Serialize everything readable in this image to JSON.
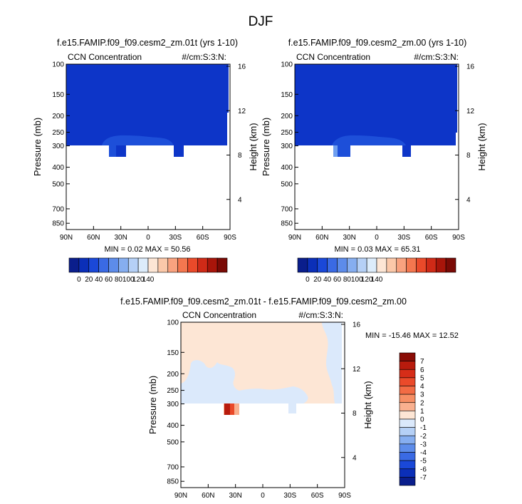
{
  "page": {
    "title": "DJF"
  },
  "colors": {
    "blue_fill": "#0d35c8",
    "blue_mid": "#1d4fd9",
    "blue_light": "#6f9ff0",
    "diff_blue": "#dbe9fb",
    "diff_orange": "#fde6d5",
    "diff_red_dark": "#b81b0d",
    "diff_red": "#ea4a2a"
  },
  "chart_data": [
    {
      "id": "left",
      "type": "heatmap",
      "title": "f.e15.FAMIP.f09_f09.cesm2_zm.01t (yrs 1-10)",
      "left_label": "CCN Concentration",
      "right_label": "#/cm:S:3:N:",
      "ylabel": "Pressure (mb)",
      "y2label": "Height (km)",
      "x_ticks": [
        "90N",
        "60N",
        "30N",
        "0",
        "30S",
        "60S",
        "90S"
      ],
      "y_ticks": [
        "100",
        "150",
        "200",
        "250",
        "300",
        "400",
        "500",
        "700",
        "850"
      ],
      "y2_ticks": [
        "16",
        "12",
        "8",
        "4"
      ],
      "min_max": "MIN =  0.02  MAX =  50.56",
      "min": 0.02,
      "max": 50.56
    },
    {
      "id": "right",
      "type": "heatmap",
      "title": "f.e15.FAMIP.f09_f09.cesm2_zm.00 (yrs 1-10)",
      "left_label": "CCN Concentration",
      "right_label": "#/cm:S:3:N:",
      "ylabel": "Pressure (mb)",
      "y2label": "Height (km)",
      "x_ticks": [
        "90N",
        "60N",
        "30N",
        "0",
        "30S",
        "60S",
        "90S"
      ],
      "y_ticks": [
        "100",
        "150",
        "200",
        "250",
        "300",
        "400",
        "500",
        "700",
        "850"
      ],
      "y2_ticks": [
        "16",
        "12",
        "8",
        "4"
      ],
      "min_max": "MIN =  0.03  MAX =  65.31",
      "min": 0.03,
      "max": 65.31
    },
    {
      "id": "diff",
      "type": "heatmap",
      "title": "f.e15.FAMIP.f09_f09.cesm2_zm.01t - f.e15.FAMIP.f09_f09.cesm2_zm.00",
      "left_label": "CCN Concentration",
      "right_label": "#/cm:S:3:N:",
      "ylabel": "Pressure (mb)",
      "y2label": "Height (km)",
      "x_ticks": [
        "90N",
        "60N",
        "30N",
        "0",
        "30S",
        "60S",
        "90S"
      ],
      "y_ticks": [
        "100",
        "150",
        "200",
        "250",
        "300",
        "400",
        "500",
        "700",
        "850"
      ],
      "y2_ticks": [
        "16",
        "12",
        "8",
        "4"
      ],
      "min_max": "MIN = -15.46  MAX =  12.52",
      "min": -15.46,
      "max": 12.52
    }
  ],
  "colorbar_abs": {
    "labels": [
      "0",
      "20",
      "40",
      "60",
      "80",
      "100",
      "120",
      "140"
    ],
    "colors": [
      "#0a1e8c",
      "#0b2fb8",
      "#1a48d8",
      "#3a6ae4",
      "#5d8cea",
      "#86aef0",
      "#b5d0f6",
      "#dcecfb",
      "#fde6d5",
      "#fbc8a9",
      "#f9a27f",
      "#f4774f",
      "#ea4a2a",
      "#cf2a17",
      "#a8150a",
      "#7a0a05"
    ]
  },
  "colorbar_diff": {
    "labels": [
      "7",
      "6",
      "5",
      "4",
      "3",
      "2",
      "1",
      "0",
      "-1",
      "-2",
      "-3",
      "-4",
      "-5",
      "-6",
      "-7"
    ],
    "colors": [
      "#8a0c06",
      "#b81b0d",
      "#d62d18",
      "#ea4a2a",
      "#f26b44",
      "#f68e64",
      "#f9b08f",
      "#fde6d5",
      "#dbe9fb",
      "#b5d0f6",
      "#86aef0",
      "#5d8cea",
      "#3a6ae4",
      "#1a48d8",
      "#0b2fb8",
      "#0a1e8c"
    ]
  }
}
